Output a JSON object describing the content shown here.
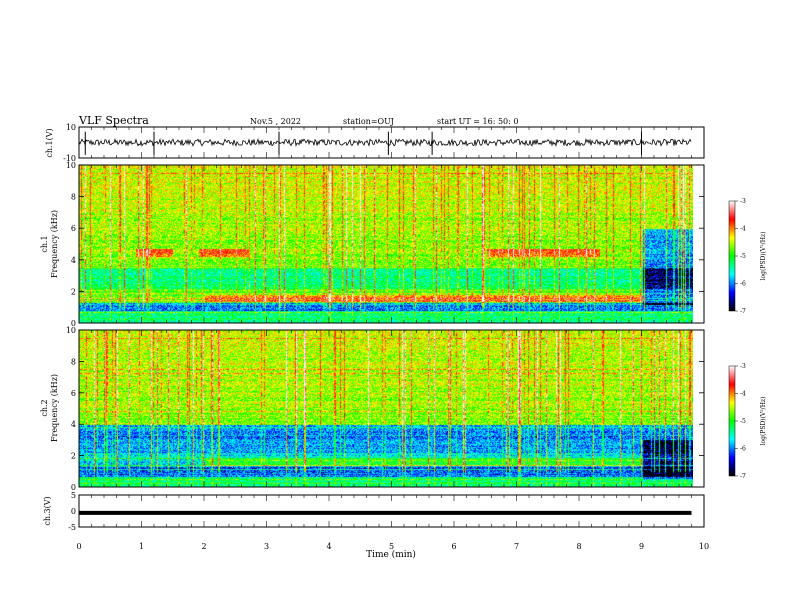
{
  "header": {
    "title": "VLF Spectra",
    "date": "Nov.5  , 2022",
    "station": "station=OUJ",
    "start_ut": "start  UT =   16: 50: 0"
  },
  "colorbar": {
    "label": "log(PSD)(V²/Hz)",
    "ticks": [
      "-3",
      "-4",
      "-5",
      "-6",
      "-7"
    ],
    "stops": [
      "#ffffff",
      "#ff0000",
      "#ffff00",
      "#00ff00",
      "#00ffff",
      "#0000ff",
      "#000000"
    ]
  },
  "chart_data": [
    {
      "type": "line",
      "panel": "ch1-waveform",
      "ylabel": "ch.1(V)",
      "ylim": [
        -10,
        10
      ],
      "yticks": [
        "10",
        "-10"
      ],
      "x": [
        0,
        10
      ],
      "baseline": 0,
      "spikes_min": [
        0.1,
        1.2,
        3.2,
        4.95,
        5.65,
        9.0
      ]
    },
    {
      "type": "heatmap",
      "panel": "ch1-spectrogram",
      "ylabel": "ch.1",
      "ylabel2": "Frequency (kHz)",
      "ylim": [
        0,
        10
      ],
      "yticks": [
        "0",
        "2",
        "4",
        "6",
        "8",
        "10"
      ],
      "xlim": [
        0,
        9.8
      ],
      "colorbar_range": [
        -7,
        -3
      ]
    },
    {
      "type": "heatmap",
      "panel": "ch2-spectrogram",
      "ylabel": "ch.2",
      "ylabel2": "Frequency (kHz)",
      "ylim": [
        0,
        10
      ],
      "yticks": [
        "0",
        "2",
        "4",
        "6",
        "8",
        "10"
      ],
      "xlim": [
        0,
        9.8
      ],
      "colorbar_range": [
        -7,
        -3
      ]
    },
    {
      "type": "line",
      "panel": "ch3-waveform",
      "ylabel": "ch.3(V)",
      "ylim": [
        -5,
        5
      ],
      "yticks": [
        "5",
        "0",
        "-5"
      ],
      "x": [
        0,
        9.8
      ],
      "values": [
        -0.6,
        -0.6
      ]
    }
  ],
  "xaxis": {
    "label": "Time (min)",
    "ticks": [
      "0",
      "1",
      "2",
      "3",
      "4",
      "5",
      "6",
      "7",
      "8",
      "9",
      "10"
    ],
    "range": [
      0,
      10
    ]
  }
}
